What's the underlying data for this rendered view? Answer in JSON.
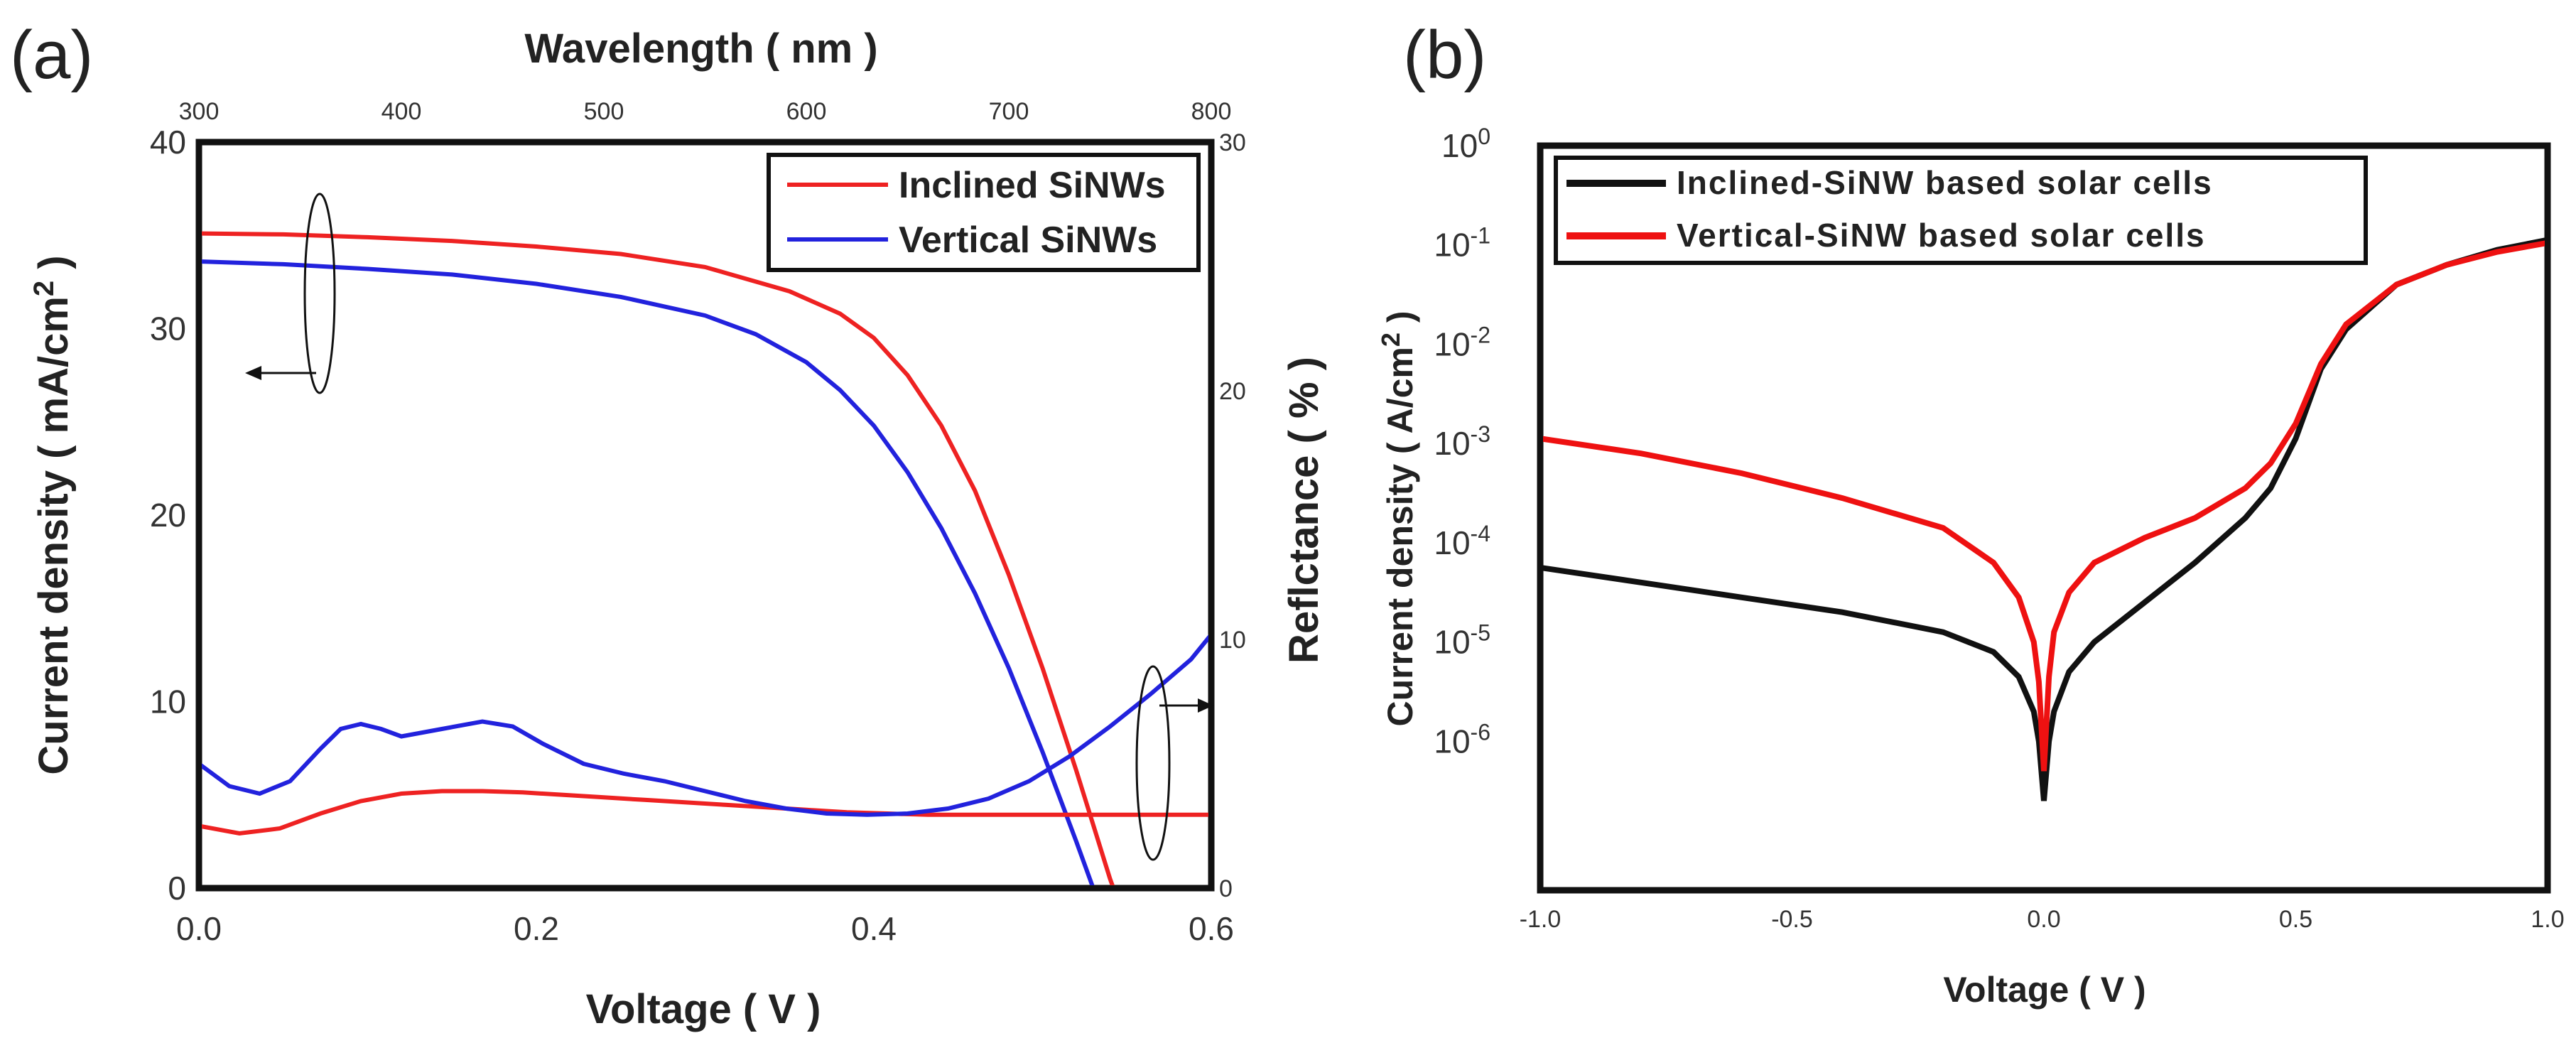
{
  "chart_data": [
    {
      "id": "a",
      "panel_label": "(a)",
      "type": "line",
      "top_xlabel": "Wavelength ( nm )",
      "top_xlim": [
        300,
        800
      ],
      "top_xticks": [
        300,
        400,
        500,
        600,
        700,
        800
      ],
      "xlabel": "Voltage ( V )",
      "xlim": [
        0,
        0.6
      ],
      "xticks": [
        "0.0",
        "0.2",
        "0.4",
        "0.6"
      ],
      "ylabel": "Current density ( mA/cm",
      "ylabel_sup": "2",
      "ylabel_end": " )",
      "ylim": [
        0,
        40
      ],
      "yticks": [
        0,
        10,
        20,
        30,
        40
      ],
      "y2label": "Reflctance ( % )",
      "y2lim": [
        0,
        30
      ],
      "y2ticks": [
        0,
        10,
        20,
        30
      ],
      "legend": {
        "position": "top-right",
        "entries": [
          "Inclined SiNWs",
          "Vertical SiNWs"
        ]
      },
      "colors": {
        "inclined": "#ee2222",
        "vertical": "#2222dd"
      },
      "series": [
        {
          "name": "Inclined SiNWs",
          "axis": "left",
          "kind": "J-V",
          "x": [
            0,
            0.05,
            0.1,
            0.15,
            0.2,
            0.25,
            0.3,
            0.35,
            0.38,
            0.4,
            0.42,
            0.44,
            0.46,
            0.48,
            0.5,
            0.52,
            0.53,
            0.54,
            0.55
          ],
          "y": [
            35.1,
            35.05,
            34.9,
            34.7,
            34.4,
            34.0,
            33.3,
            32.0,
            30.8,
            29.5,
            27.5,
            24.8,
            21.3,
            16.8,
            11.8,
            6.3,
            3.4,
            0.5,
            -2.0
          ]
        },
        {
          "name": "Vertical SiNWs",
          "axis": "left",
          "kind": "J-V",
          "x": [
            0,
            0.05,
            0.1,
            0.15,
            0.2,
            0.25,
            0.3,
            0.33,
            0.36,
            0.38,
            0.4,
            0.42,
            0.44,
            0.46,
            0.48,
            0.5,
            0.52,
            0.53,
            0.54
          ],
          "y": [
            33.6,
            33.45,
            33.2,
            32.9,
            32.4,
            31.7,
            30.7,
            29.7,
            28.2,
            26.7,
            24.8,
            22.3,
            19.3,
            15.8,
            11.8,
            7.3,
            2.5,
            0.0,
            -2.0
          ]
        },
        {
          "name": "Inclined SiNWs",
          "axis": "right",
          "kind": "Reflectance",
          "x": [
            300,
            320,
            340,
            360,
            380,
            400,
            420,
            440,
            460,
            480,
            500,
            520,
            540,
            560,
            580,
            600,
            620,
            640,
            660,
            680,
            700,
            720,
            740,
            760,
            780,
            800
          ],
          "y": [
            2.5,
            2.2,
            2.4,
            3.0,
            3.5,
            3.8,
            3.9,
            3.9,
            3.85,
            3.75,
            3.65,
            3.55,
            3.45,
            3.35,
            3.25,
            3.15,
            3.05,
            3.0,
            2.95,
            2.95,
            2.95,
            2.95,
            2.95,
            2.95,
            2.95,
            2.95
          ]
        },
        {
          "name": "Vertical SiNWs",
          "axis": "right",
          "kind": "Reflectance",
          "x": [
            300,
            315,
            330,
            345,
            360,
            370,
            380,
            390,
            400,
            420,
            440,
            455,
            470,
            490,
            510,
            530,
            550,
            570,
            590,
            610,
            630,
            650,
            670,
            690,
            710,
            730,
            750,
            770,
            790,
            800
          ],
          "y": [
            5.0,
            4.1,
            3.8,
            4.3,
            5.6,
            6.4,
            6.6,
            6.4,
            6.1,
            6.4,
            6.7,
            6.5,
            5.8,
            5.0,
            4.6,
            4.3,
            3.9,
            3.5,
            3.2,
            3.0,
            2.95,
            3.0,
            3.2,
            3.6,
            4.3,
            5.3,
            6.5,
            7.8,
            9.2,
            10.2
          ]
        }
      ]
    },
    {
      "id": "b",
      "panel_label": "(b)",
      "type": "line",
      "yscale": "log",
      "xlabel": "Voltage ( V )",
      "xlim": [
        -1,
        1
      ],
      "xticks": [
        "-1.0",
        "-0.5",
        "0.0",
        "0.5",
        "1.0"
      ],
      "ylabel": "Current density ( A/cm",
      "ylabel_sup": "2",
      "ylabel_end": " )",
      "ylim_exp": [
        -7.5,
        0
      ],
      "ytick_base": "10",
      "ytick_exponents": [
        "0",
        "-1",
        "-2",
        "-3",
        "-4",
        "-5",
        "-6"
      ],
      "legend": {
        "position": "top-left",
        "entries": [
          "Inclined-SiNW based solar cells",
          "Vertical-SiNW based solar cells"
        ]
      },
      "colors": {
        "inclined": "#111111",
        "vertical": "#ee1111"
      },
      "series": [
        {
          "name": "Inclined-SiNW based solar cells",
          "x": [
            -1,
            -0.8,
            -0.6,
            -0.4,
            -0.2,
            -0.1,
            -0.05,
            -0.02,
            -0.01,
            0,
            0.01,
            0.02,
            0.05,
            0.1,
            0.2,
            0.3,
            0.4,
            0.45,
            0.5,
            0.55,
            0.6,
            0.7,
            0.8,
            0.9,
            1.0
          ],
          "log10_y": [
            -4.25,
            -4.4,
            -4.55,
            -4.7,
            -4.9,
            -5.1,
            -5.35,
            -5.7,
            -6.0,
            -6.6,
            -6.0,
            -5.7,
            -5.3,
            -5.0,
            -4.6,
            -4.2,
            -3.75,
            -3.45,
            -2.95,
            -2.25,
            -1.85,
            -1.4,
            -1.2,
            -1.05,
            -0.95
          ]
        },
        {
          "name": "Vertical-SiNW based solar cells",
          "x": [
            -1,
            -0.8,
            -0.6,
            -0.4,
            -0.2,
            -0.1,
            -0.05,
            -0.02,
            -0.01,
            0,
            0.01,
            0.02,
            0.05,
            0.1,
            0.2,
            0.3,
            0.4,
            0.45,
            0.5,
            0.55,
            0.6,
            0.7,
            0.8,
            0.9,
            1.0
          ],
          "log10_y": [
            -2.95,
            -3.1,
            -3.3,
            -3.55,
            -3.85,
            -4.2,
            -4.55,
            -5.0,
            -5.4,
            -6.3,
            -5.35,
            -4.9,
            -4.5,
            -4.2,
            -3.95,
            -3.75,
            -3.45,
            -3.2,
            -2.8,
            -2.2,
            -1.8,
            -1.4,
            -1.2,
            -1.07,
            -0.98
          ]
        }
      ]
    }
  ]
}
